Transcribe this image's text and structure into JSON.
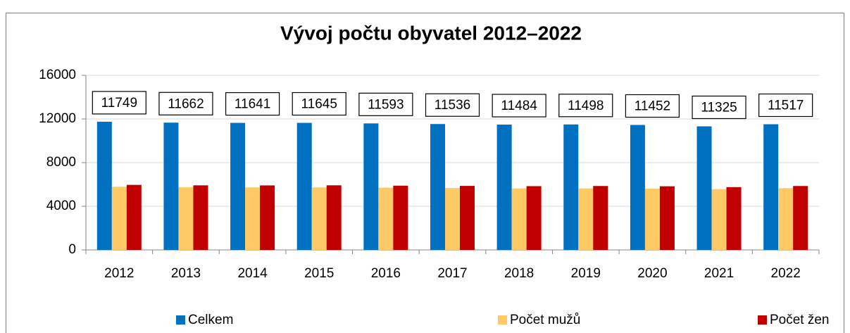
{
  "chart_data": {
    "type": "bar",
    "title": "Vývoj počtu obyvatel 2012–2022",
    "categories": [
      "2012",
      "2013",
      "2014",
      "2015",
      "2016",
      "2017",
      "2018",
      "2019",
      "2020",
      "2021",
      "2022"
    ],
    "series": [
      {
        "name": "Celkem",
        "color": "#0070c0",
        "values": [
          11749,
          11662,
          11641,
          11645,
          11593,
          11536,
          11484,
          11498,
          11452,
          11325,
          11517
        ],
        "data_labels": true
      },
      {
        "name": "Počet mužů",
        "color": "#ffc966",
        "values": [
          5790,
          5745,
          5730,
          5725,
          5705,
          5670,
          5640,
          5640,
          5620,
          5570,
          5660
        ]
      },
      {
        "name": "Počet žen",
        "color": "#c00000",
        "values": [
          5959,
          5917,
          5911,
          5920,
          5888,
          5866,
          5844,
          5858,
          5832,
          5755,
          5857
        ]
      }
    ],
    "ylim": [
      0,
      16000
    ],
    "yticks": [
      0,
      4000,
      8000,
      12000,
      16000
    ],
    "grid": true,
    "legend": "bottom"
  }
}
